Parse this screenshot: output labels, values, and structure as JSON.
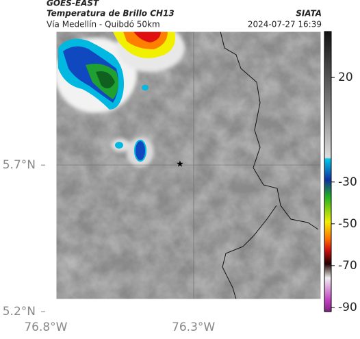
{
  "header": {
    "title": "GOES-EAST",
    "subtitle": "Temperatura de Brillo CH13",
    "region": "Vía Medellín - Quibdó 50km",
    "source": "SIATA",
    "timestamp": "2024-07-27 16:39"
  },
  "map": {
    "lonlim": [
      -76.765,
      -75.868
    ],
    "latlim": [
      5.242,
      6.156
    ],
    "lat_ticks": [
      {
        "value": 5.7,
        "label": "5.7°N"
      },
      {
        "value": 5.2,
        "label": "5.2°N"
      }
    ],
    "lon_ticks": [
      {
        "value": -76.8,
        "label": "76.8°W"
      },
      {
        "value": -76.3,
        "label": "76.3°W"
      }
    ],
    "colorbar": {
      "clim": [
        -92,
        42
      ],
      "ticks": [
        20,
        -30,
        -50,
        -70,
        -90
      ]
    }
  }
}
